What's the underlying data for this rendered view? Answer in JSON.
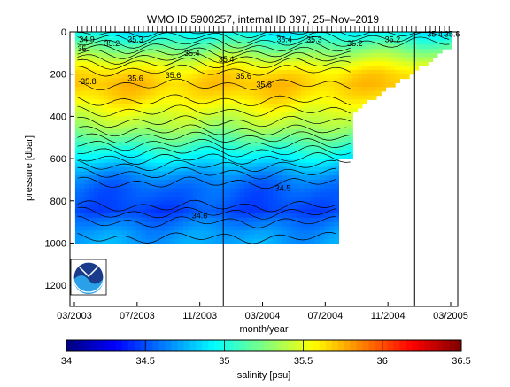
{
  "chart_data": {
    "type": "heatmap",
    "title": "WMO ID 5900257, internal ID 397, 25–Nov–2019",
    "xlabel": "month/year",
    "ylabel": "pressure [dbar]",
    "colorbar_label": "salinity [psu]",
    "x_ticks": [
      "03/2003",
      "07/2003",
      "11/2003",
      "03/2004",
      "07/2004",
      "11/2004",
      "03/2005"
    ],
    "x_tick_months": [
      0,
      4,
      8,
      12,
      16,
      20,
      24
    ],
    "y_ticks": [
      0,
      200,
      400,
      600,
      800,
      1000,
      1200
    ],
    "ylim": [
      1300,
      0
    ],
    "colorbar_ticks": [
      34,
      34.5,
      35,
      35.5,
      36,
      36.5
    ],
    "colorbar_range": [
      34,
      36.5
    ],
    "vertical_lines_months": [
      9.5,
      21.7
    ],
    "profile_months": [
      0.2,
      0.5,
      0.8,
      1.1,
      1.4,
      1.7,
      2.0,
      2.3,
      2.6,
      2.9,
      3.2,
      3.5,
      3.8,
      4.1,
      4.4,
      4.7,
      5.0,
      5.3,
      5.6,
      5.9,
      6.2,
      6.5,
      6.8,
      7.1,
      7.4,
      7.7,
      8.0,
      8.3,
      8.6,
      8.9,
      9.2,
      9.5,
      9.8,
      10.1,
      10.4,
      10.7,
      11.0,
      11.3,
      11.6,
      11.9,
      12.2,
      12.5,
      12.8,
      13.1,
      13.4,
      13.7,
      14.0,
      14.3,
      14.6,
      14.9,
      15.2,
      15.5,
      15.8,
      16.1,
      16.4,
      16.7,
      17.0,
      17.3,
      17.6,
      17.9,
      18.2,
      18.5,
      18.8,
      19.1,
      19.4,
      19.7,
      20.0,
      20.3,
      20.6,
      20.9,
      21.2,
      21.5,
      21.8,
      22.1,
      22.4,
      22.7,
      23.0,
      23.3,
      23.6,
      23.9
    ],
    "data_extent": {
      "full_depth_end_month": 16.7,
      "mid_depth_end_month": 17.8,
      "surface_end_month": 24.0
    },
    "salinity_profile_levels": {
      "pressure": [
        0,
        50,
        100,
        150,
        200,
        250,
        300,
        350,
        400,
        450,
        500,
        550,
        600,
        650,
        700,
        750,
        800,
        850,
        900,
        950,
        1000
      ],
      "salinity": [
        34.9,
        35.1,
        35.3,
        35.5,
        35.65,
        35.7,
        35.65,
        35.55,
        35.45,
        35.35,
        35.2,
        35.05,
        34.9,
        34.75,
        34.62,
        34.55,
        34.52,
        34.48,
        34.6,
        34.68,
        34.72
      ]
    },
    "contour_labels": [
      {
        "text": "34.9",
        "month": 0.3,
        "p": 35
      },
      {
        "text": "35",
        "month": 0.2,
        "p": 80
      },
      {
        "text": "35.2",
        "month": 1.9,
        "p": 55
      },
      {
        "text": "35.3",
        "month": 3.4,
        "p": 35
      },
      {
        "text": "35.4",
        "month": 9.2,
        "p": 130
      },
      {
        "text": "35.4",
        "month": 7.0,
        "p": 100
      },
      {
        "text": "35.8",
        "month": 0.4,
        "p": 235
      },
      {
        "text": "35.6",
        "month": 3.4,
        "p": 220
      },
      {
        "text": "35.6",
        "month": 5.8,
        "p": 205
      },
      {
        "text": "35.6",
        "month": 10.3,
        "p": 210
      },
      {
        "text": "35.6",
        "month": 11.6,
        "p": 250
      },
      {
        "text": "35.4",
        "month": 12.9,
        "p": 35
      },
      {
        "text": "35.3",
        "month": 14.8,
        "p": 35
      },
      {
        "text": "35.2",
        "month": 17.4,
        "p": 55
      },
      {
        "text": "35.2",
        "month": 19.8,
        "p": 35
      },
      {
        "text": "35.4",
        "month": 22.5,
        "p": 10
      },
      {
        "text": "35.6",
        "month": 23.6,
        "p": 10
      },
      {
        "text": "34.5",
        "month": 12.8,
        "p": 740
      },
      {
        "text": "34.6",
        "month": 7.5,
        "p": 870
      }
    ]
  }
}
